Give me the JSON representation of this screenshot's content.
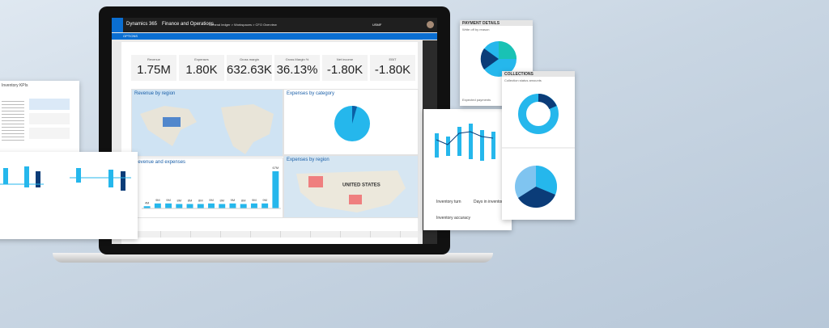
{
  "laptop": {
    "app_name": "Dynamics 365",
    "module": "Finance and Operations",
    "breadcrumb": "General ledger > Workspaces > CFO Overview",
    "user": "USMF",
    "options": "OPTIONS",
    "kpis": [
      {
        "label": "Revenue",
        "value": "1.75M"
      },
      {
        "label": "Expenses",
        "value": "1.80K"
      },
      {
        "label": "Gross margin",
        "value": "632.63K"
      },
      {
        "label": "Gross Margin %",
        "value": "36.13%"
      },
      {
        "label": "Net income",
        "value": "-1.80K"
      },
      {
        "label": "EBIT",
        "value": "-1.80K"
      }
    ],
    "panels": {
      "revenue_by_region": "Revenue by region",
      "expenses_by_category": "Expenses by category",
      "expenses_by_region": "Expenses by region",
      "revenue_and_expenses": "Revenue and expenses",
      "map_label": "UNITED STATES"
    },
    "revenue_and_expenses_chart": {
      "values": [
        4,
        9,
        9,
        8,
        8,
        8,
        9,
        8,
        9,
        8,
        9,
        9,
        67
      ],
      "value_labels": [
        "4M",
        "9M",
        "9M",
        "8M",
        "8M",
        "8M",
        "9M",
        "8M",
        "9M",
        "8M",
        "9M",
        "9M",
        "67M"
      ]
    }
  },
  "cards": {
    "inventory_kpis": "Inventory KPIs",
    "payment_details": "PAYMENT DETAILS",
    "write_off": "Write off by reason",
    "expected_payments": "Expected payments",
    "collections": "COLLECTIONS",
    "collection_status": "Collection status amounts",
    "inventory_turn": "Inventory turn",
    "days_in_inventory": "Days in inventory",
    "inventory_accuracy": "Inventory accuracy"
  }
}
